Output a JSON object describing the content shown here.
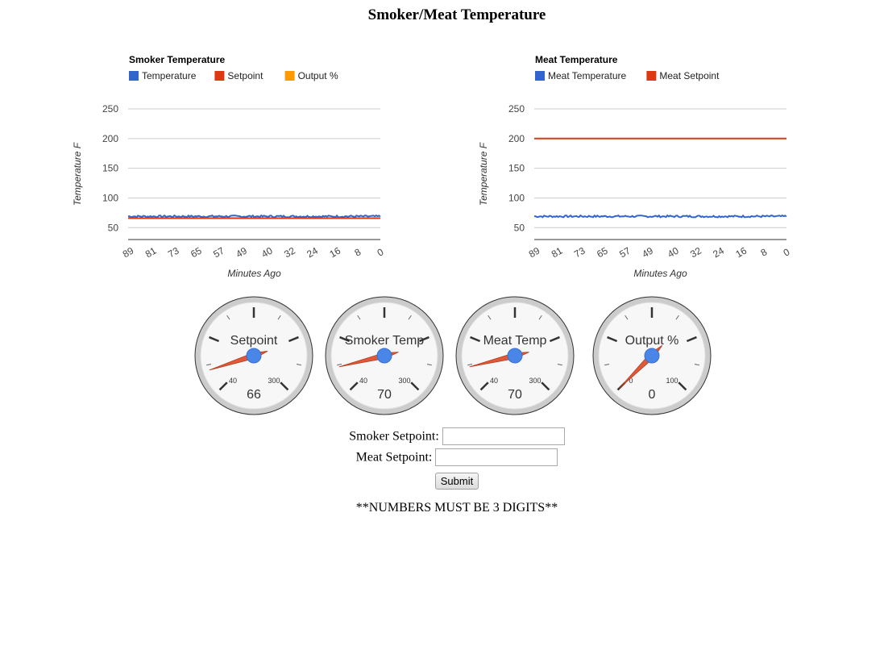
{
  "page": {
    "title": "Smoker/Meat Temperature"
  },
  "charts": [
    {
      "id": "smoker",
      "legend_title": "Smoker Temperature",
      "ylabel": "Temperature F",
      "xlabel": "Minutes Ago",
      "yticks": [
        50,
        100,
        150,
        200,
        250
      ],
      "ylim": [
        30,
        250
      ],
      "xticks": [
        "89",
        "81",
        "73",
        "65",
        "57",
        "49",
        "40",
        "32",
        "24",
        "16",
        "8",
        "0"
      ],
      "x_range_minutes": [
        89,
        0
      ],
      "series": [
        {
          "name": "Temperature",
          "color": "#3366cc",
          "level": 69,
          "noise": true
        },
        {
          "name": "Setpoint",
          "color": "#dc3912",
          "level": 66,
          "noise": false
        },
        {
          "name": "Output %",
          "color": "#ff9900",
          "level": null,
          "noise": false
        }
      ]
    },
    {
      "id": "meat",
      "legend_title": "Meat Temperature",
      "ylabel": "Temperature F",
      "xlabel": "Minutes Ago",
      "yticks": [
        50,
        100,
        150,
        200,
        250
      ],
      "ylim": [
        30,
        250
      ],
      "xticks": [
        "89",
        "81",
        "73",
        "65",
        "57",
        "49",
        "40",
        "32",
        "24",
        "16",
        "8",
        "0"
      ],
      "x_range_minutes": [
        89,
        0
      ],
      "series": [
        {
          "name": "Meat Temperature",
          "color": "#3366cc",
          "level": 69,
          "noise": true
        },
        {
          "name": "Meat Setpoint",
          "color": "#dc3912",
          "level": 200,
          "noise": false
        }
      ]
    }
  ],
  "chart_data": [
    {
      "type": "line",
      "title": "Smoker Temperature",
      "xlabel": "Minutes Ago",
      "ylabel": "Temperature F",
      "x_ticks": [
        89,
        81,
        73,
        65,
        57,
        49,
        40,
        32,
        24,
        16,
        8,
        0
      ],
      "ylim": [
        30,
        250
      ],
      "series": [
        {
          "name": "Temperature",
          "values_approx": 69
        },
        {
          "name": "Setpoint",
          "values_approx": 66
        },
        {
          "name": "Output %",
          "values_approx": null
        }
      ],
      "legend": "top-left",
      "grid": true
    },
    {
      "type": "line",
      "title": "Meat Temperature",
      "xlabel": "Minutes Ago",
      "ylabel": "Temperature F",
      "x_ticks": [
        89,
        81,
        73,
        65,
        57,
        49,
        40,
        32,
        24,
        16,
        8,
        0
      ],
      "ylim": [
        30,
        250
      ],
      "series": [
        {
          "name": "Meat Temperature",
          "values_approx": 69
        },
        {
          "name": "Meat Setpoint",
          "values_approx": 200
        }
      ],
      "legend": "top-left",
      "grid": true
    }
  ],
  "gauges": [
    {
      "id": "setpoint",
      "label": "Setpoint",
      "value": 66,
      "display": "66",
      "min_label": "40",
      "max_label": "300",
      "scale_min": 40,
      "scale_max": 300
    },
    {
      "id": "smoker-temp",
      "label": "Smoker Temp",
      "value": 70,
      "display": "70",
      "min_label": "40",
      "max_label": "300",
      "scale_min": 40,
      "scale_max": 300
    },
    {
      "id": "meat-temp",
      "label": "Meat Temp",
      "value": 70,
      "display": "70",
      "min_label": "40",
      "max_label": "300",
      "scale_min": 40,
      "scale_max": 300
    },
    {
      "id": "output",
      "label": "Output %",
      "value": 0,
      "display": "0",
      "min_label": "0",
      "max_label": "100",
      "scale_min": 0,
      "scale_max": 100
    }
  ],
  "form": {
    "smoker_label": "Smoker Setpoint:",
    "smoker_value": "",
    "meat_label": "Meat Setpoint:",
    "meat_value": "",
    "submit_label": "Submit",
    "note": "**NUMBERS MUST BE 3 DIGITS**"
  },
  "colors": {
    "blue": "#3366cc",
    "red": "#dc3912",
    "orange": "#ff9900",
    "needle": "#e05a3a",
    "hub": "#4a86e8"
  }
}
